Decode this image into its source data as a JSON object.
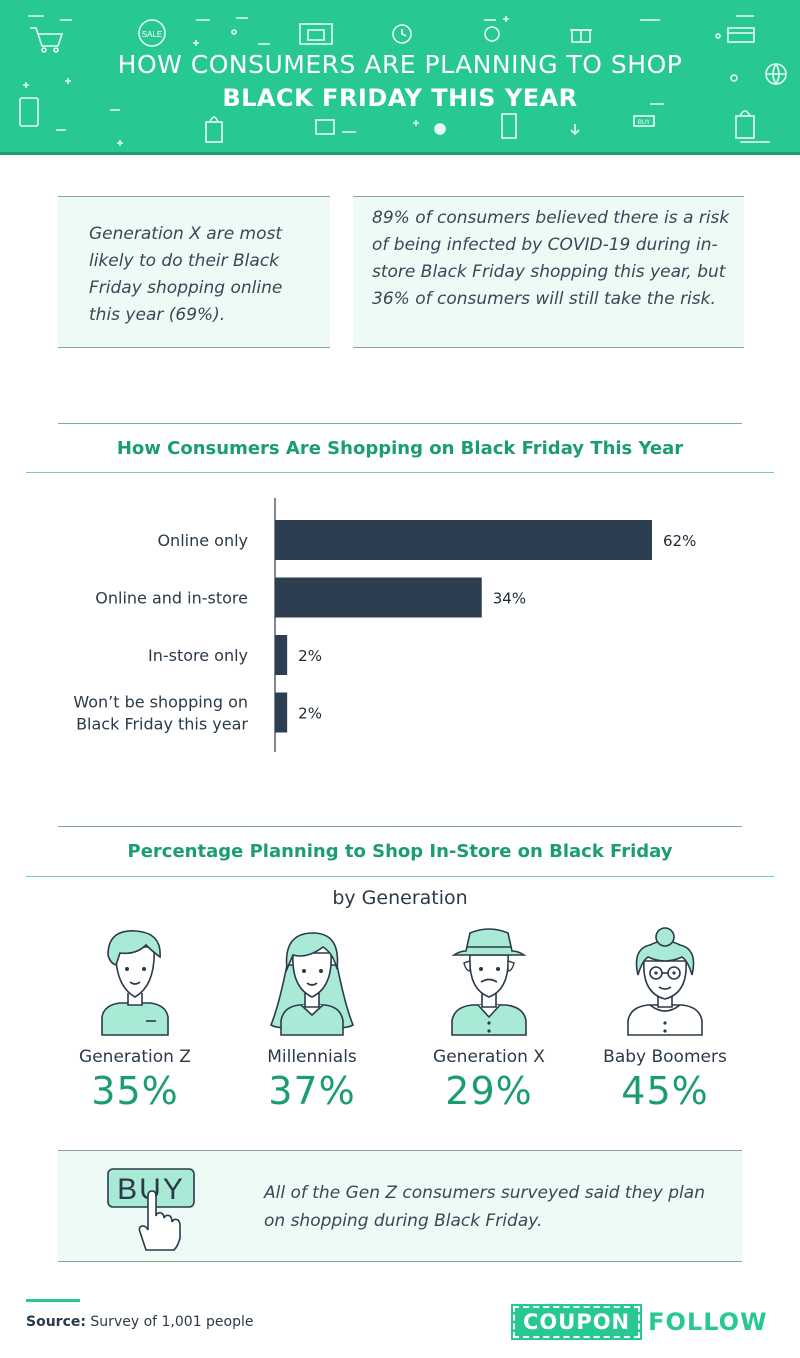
{
  "header": {
    "line1": "HOW CONSUMERS ARE PLANNING TO SHOP",
    "line2": "BLACK FRIDAY THIS YEAR",
    "icons": [
      "shopping-cart-icon",
      "sale-tag-icon",
      "store-icon",
      "clock-icon",
      "percent-tag-icon",
      "gift-icon",
      "credit-card-icon",
      "globe-icon",
      "phone-icon",
      "shopping-bag-icon",
      "dollar-coin-icon",
      "buy-tag-icon",
      "arrow-down-icon"
    ],
    "sale_text": "SALE",
    "buy_tag_text": "BUY"
  },
  "facts": [
    {
      "text": "Generation X are most likely to do their Black Friday shopping online this year (69%)."
    },
    {
      "text": "89% of consumers believed there is a risk of being infected by COVID-19 during in-store Black Friday shopping this year, but 36% of consumers will still take the risk."
    }
  ],
  "chart_title": "How Consumers Are Shopping on Black Friday This Year",
  "chart_data": {
    "type": "bar",
    "orientation": "horizontal",
    "categories": [
      "Online only",
      "Online and in-store",
      "In-store only",
      "Won’t be shopping on Black Friday this year"
    ],
    "values": [
      62,
      34,
      2,
      2
    ],
    "value_labels": [
      "62%",
      "34%",
      "2%",
      "2%"
    ],
    "unit": "%",
    "xlim": [
      0,
      62
    ],
    "bar_color": "#2c3e50"
  },
  "generation_section": {
    "title": "Percentage Planning to Shop In-Store on Black Friday",
    "subtitle": "by Generation",
    "items": [
      {
        "label": "Generation Z",
        "percent": "35%",
        "icon": "gen-z-avatar-icon"
      },
      {
        "label": "Millennials",
        "percent": "37%",
        "icon": "millennial-avatar-icon"
      },
      {
        "label": "Generation X",
        "percent": "29%",
        "icon": "gen-x-avatar-icon"
      },
      {
        "label": "Baby Boomers",
        "percent": "45%",
        "icon": "baby-boomer-avatar-icon"
      }
    ]
  },
  "buy_box": {
    "button_text": "BUY",
    "icon": "buy-button-hand-icon",
    "text": "All of the Gen Z consumers surveyed said they plan on shopping during Black Friday."
  },
  "footer": {
    "source_label": "Source:",
    "source_text": "Survey of 1,001 people",
    "logo_left": "COUPON",
    "logo_right": "FOLLOW"
  },
  "colors": {
    "brand_green": "#27c894",
    "title_green": "#1b9e6f",
    "bar": "#2c3e50",
    "box_bg": "#eefaf5"
  }
}
